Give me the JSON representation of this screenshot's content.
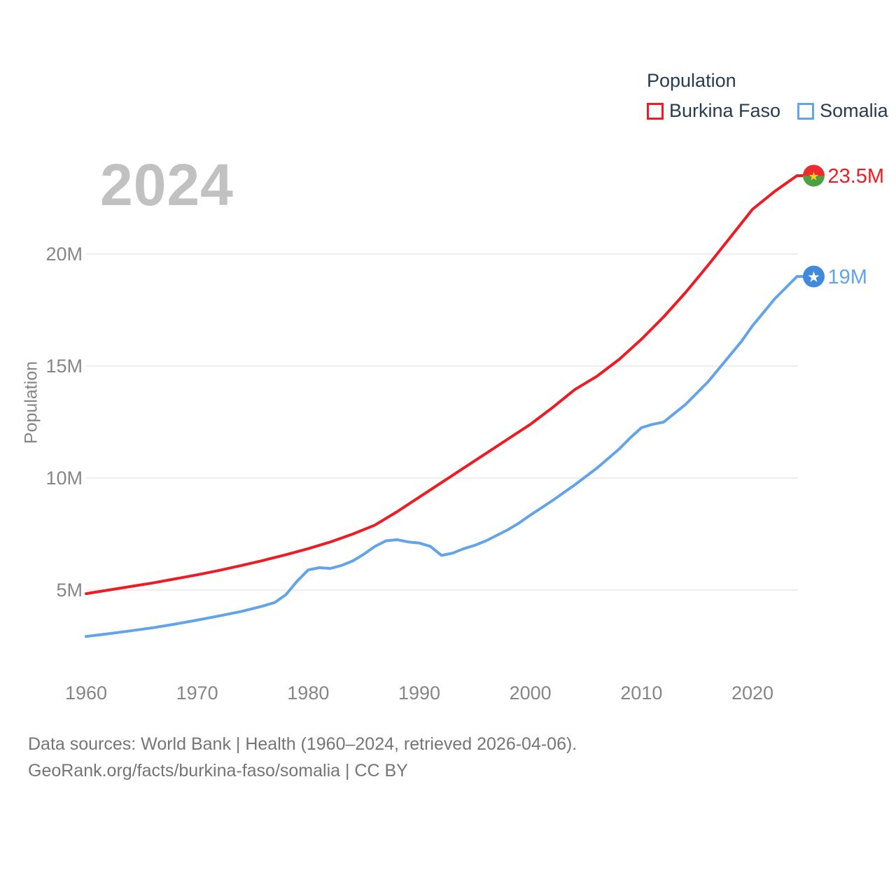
{
  "watermark_year": "2024",
  "legend": {
    "title": "Population",
    "items": [
      {
        "label": "Burkina Faso",
        "color": "#ed1c24"
      },
      {
        "label": "Somalia",
        "color": "#63a4e8"
      }
    ]
  },
  "footer": {
    "line1": "Data sources: World Bank | Health (1960–2024, retrieved 2026-04-06).",
    "line2": "GeoRank.org/facts/burkina-faso/somalia | CC BY"
  },
  "colors": {
    "grid": "#e9e9e9",
    "tick_text": "#868686",
    "watermark": "#c1c1c1",
    "legend_text": "#263c52",
    "footer_text": "#757575",
    "burkina_line": "#ed1c24",
    "somalia_line": "#63a4e8",
    "bf_flag_red": "#ef2b2d",
    "bf_flag_green": "#4f9e44",
    "bf_star_gold": "#fcd116",
    "somalia_flag_blue": "#4189dd",
    "somalia_star_white": "#ffffff"
  },
  "chart_data": {
    "type": "line",
    "title": "Population",
    "xlabel": "",
    "ylabel": "Population",
    "x_ticks": [
      1960,
      1970,
      1980,
      1990,
      2000,
      2010,
      2020
    ],
    "y_ticks": [
      {
        "value": 5,
        "label": "5M"
      },
      {
        "value": 10,
        "label": "10M"
      },
      {
        "value": 15,
        "label": "15M"
      },
      {
        "value": 20,
        "label": "20M"
      }
    ],
    "xlim": [
      1960,
      2024
    ],
    "ylim": [
      2.5,
      24.5
    ],
    "grid": "horizontal",
    "legend_position": "top-right",
    "series": [
      {
        "name": "Burkina Faso",
        "slug": "burkina-faso",
        "color": "#ed1c24",
        "end_label": "23.5M",
        "end_value": 23.5,
        "flag": "burkina-faso",
        "points": [
          [
            1960,
            4.84
          ],
          [
            1962,
            5.0
          ],
          [
            1964,
            5.16
          ],
          [
            1966,
            5.32
          ],
          [
            1968,
            5.5
          ],
          [
            1970,
            5.68
          ],
          [
            1972,
            5.88
          ],
          [
            1974,
            6.1
          ],
          [
            1976,
            6.33
          ],
          [
            1978,
            6.58
          ],
          [
            1980,
            6.85
          ],
          [
            1982,
            7.15
          ],
          [
            1984,
            7.5
          ],
          [
            1986,
            7.9
          ],
          [
            1988,
            8.5
          ],
          [
            1990,
            9.15
          ],
          [
            1992,
            9.8
          ],
          [
            1994,
            10.45
          ],
          [
            1996,
            11.1
          ],
          [
            1998,
            11.75
          ],
          [
            2000,
            12.4
          ],
          [
            2002,
            13.15
          ],
          [
            2004,
            13.95
          ],
          [
            2006,
            14.55
          ],
          [
            2008,
            15.3
          ],
          [
            2010,
            16.2
          ],
          [
            2012,
            17.2
          ],
          [
            2014,
            18.3
          ],
          [
            2016,
            19.5
          ],
          [
            2018,
            20.75
          ],
          [
            2020,
            22.0
          ],
          [
            2022,
            22.8
          ],
          [
            2024,
            23.5
          ]
        ]
      },
      {
        "name": "Somalia",
        "slug": "somalia",
        "color": "#63a4e8",
        "end_label": "19M",
        "end_value": 19.0,
        "flag": "somalia",
        "points": [
          [
            1960,
            2.93
          ],
          [
            1962,
            3.05
          ],
          [
            1964,
            3.18
          ],
          [
            1966,
            3.32
          ],
          [
            1968,
            3.48
          ],
          [
            1970,
            3.66
          ],
          [
            1972,
            3.85
          ],
          [
            1974,
            4.05
          ],
          [
            1976,
            4.3
          ],
          [
            1977,
            4.45
          ],
          [
            1978,
            4.8
          ],
          [
            1979,
            5.4
          ],
          [
            1980,
            5.9
          ],
          [
            1981,
            6.0
          ],
          [
            1982,
            5.97
          ],
          [
            1983,
            6.1
          ],
          [
            1984,
            6.3
          ],
          [
            1985,
            6.6
          ],
          [
            1986,
            6.95
          ],
          [
            1987,
            7.2
          ],
          [
            1988,
            7.25
          ],
          [
            1989,
            7.15
          ],
          [
            1990,
            7.1
          ],
          [
            1991,
            6.95
          ],
          [
            1992,
            6.55
          ],
          [
            1993,
            6.65
          ],
          [
            1994,
            6.85
          ],
          [
            1995,
            7.0
          ],
          [
            1996,
            7.2
          ],
          [
            1997,
            7.45
          ],
          [
            1998,
            7.7
          ],
          [
            1999,
            8.0
          ],
          [
            2000,
            8.35
          ],
          [
            2002,
            9.0
          ],
          [
            2004,
            9.7
          ],
          [
            2006,
            10.45
          ],
          [
            2008,
            11.3
          ],
          [
            2009,
            11.8
          ],
          [
            2010,
            12.25
          ],
          [
            2011,
            12.4
          ],
          [
            2012,
            12.5
          ],
          [
            2013,
            12.9
          ],
          [
            2014,
            13.3
          ],
          [
            2015,
            13.8
          ],
          [
            2016,
            14.3
          ],
          [
            2017,
            14.9
          ],
          [
            2018,
            15.5
          ],
          [
            2019,
            16.1
          ],
          [
            2020,
            16.8
          ],
          [
            2021,
            17.4
          ],
          [
            2022,
            18.0
          ],
          [
            2023,
            18.5
          ],
          [
            2024,
            19.0
          ]
        ]
      }
    ]
  }
}
